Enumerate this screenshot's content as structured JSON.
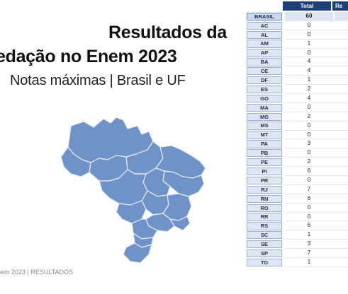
{
  "slide": {
    "title_line1": "Resultados da",
    "title_line2": "edação no Enem 2023",
    "subtitle": "Notas máximas | Brasil e UF",
    "footer": "nem 2023 | RESULTADOS"
  },
  "map": {
    "fill_color": "#6f93c9",
    "border_color": "#e9eef7",
    "icon": "brazil-map"
  },
  "table": {
    "headers": {
      "total": "Total",
      "second": "Re"
    },
    "header_color": "#1f3f7a",
    "rows": [
      {
        "uf": "BRASIL",
        "total": "60"
      },
      {
        "uf": "AC",
        "total": "0"
      },
      {
        "uf": "AL",
        "total": "0"
      },
      {
        "uf": "AM",
        "total": "1"
      },
      {
        "uf": "AP",
        "total": "0"
      },
      {
        "uf": "BA",
        "total": "4"
      },
      {
        "uf": "CE",
        "total": "4"
      },
      {
        "uf": "DF",
        "total": "1"
      },
      {
        "uf": "ES",
        "total": "2"
      },
      {
        "uf": "GO",
        "total": "4"
      },
      {
        "uf": "MA",
        "total": "0"
      },
      {
        "uf": "MG",
        "total": "2"
      },
      {
        "uf": "MS",
        "total": "0"
      },
      {
        "uf": "MT",
        "total": "0"
      },
      {
        "uf": "PA",
        "total": "3"
      },
      {
        "uf": "PB",
        "total": "0"
      },
      {
        "uf": "PE",
        "total": "2"
      },
      {
        "uf": "PI",
        "total": "6"
      },
      {
        "uf": "PR",
        "total": "0"
      },
      {
        "uf": "RJ",
        "total": "7"
      },
      {
        "uf": "RN",
        "total": "6"
      },
      {
        "uf": "RO",
        "total": "0"
      },
      {
        "uf": "RR",
        "total": "0"
      },
      {
        "uf": "RS",
        "total": "6"
      },
      {
        "uf": "SC",
        "total": "1"
      },
      {
        "uf": "SE",
        "total": "3"
      },
      {
        "uf": "SP",
        "total": "7"
      },
      {
        "uf": "TO",
        "total": "1"
      }
    ]
  }
}
